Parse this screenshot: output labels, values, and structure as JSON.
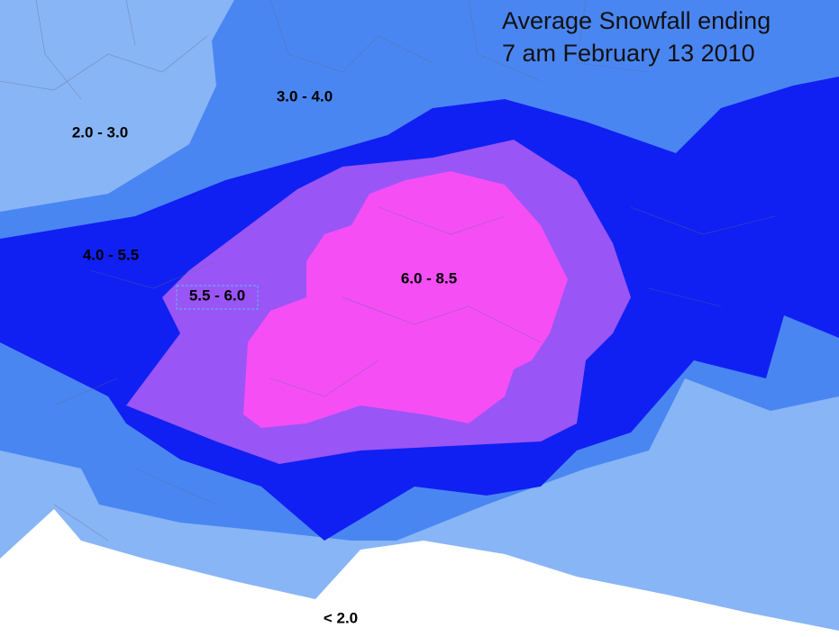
{
  "title": [
    "Average Snowfall ending",
    "7 am February 13 2010"
  ],
  "zones": [
    {
      "label": "2.0 - 3.0"
    },
    {
      "label": "3.0 - 4.0"
    },
    {
      "label": "4.0 - 5.5"
    },
    {
      "label": "5.5 - 6.0"
    },
    {
      "label": "6.0 - 8.5"
    },
    {
      "label": "< 2.0"
    }
  ]
}
